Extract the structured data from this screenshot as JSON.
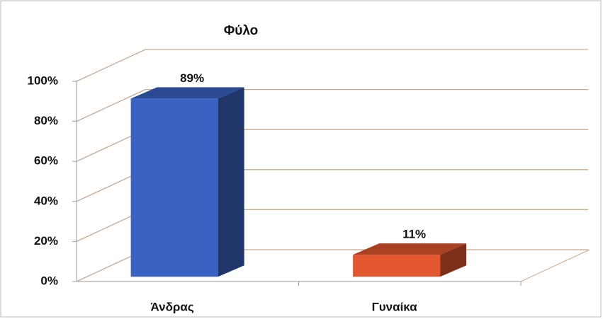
{
  "chart_data": {
    "type": "bar3d",
    "title": "Φύλο",
    "categories": [
      "Άνδρας",
      "Γυναίκα"
    ],
    "values": [
      89,
      11
    ],
    "value_labels": [
      "89%",
      "11%"
    ],
    "colors": [
      "#3a62c2",
      "#e2572f"
    ],
    "ylim": [
      0,
      100
    ],
    "yticks": [
      {
        "value": 0,
        "label": "0%"
      },
      {
        "value": 20,
        "label": "20%"
      },
      {
        "value": 40,
        "label": "40%"
      },
      {
        "value": 60,
        "label": "60%"
      },
      {
        "value": 80,
        "label": "80%"
      },
      {
        "value": 100,
        "label": "100%"
      }
    ],
    "grid": true
  }
}
